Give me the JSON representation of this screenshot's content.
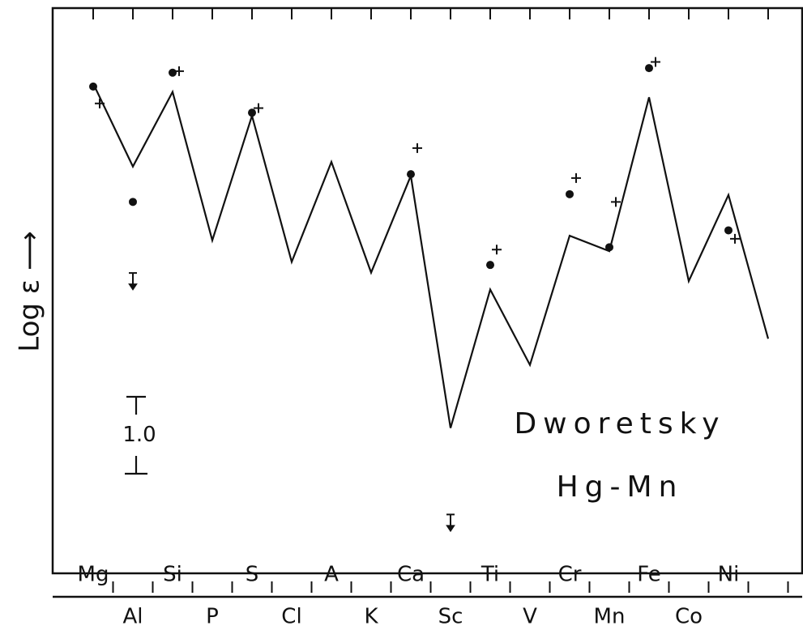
{
  "chart_data": {
    "type": "line",
    "y_label": "Log ε ⟶",
    "annotations": [
      "Dworetsky",
      "Hg-Mn"
    ],
    "scale_bar": {
      "value": 1.0,
      "label": "1.0"
    },
    "categories": [
      "Mg",
      "Al",
      "Si",
      "P",
      "S",
      "Cl",
      "A",
      "K",
      "Ca",
      "Sc",
      "Ti",
      "V",
      "Cr",
      "Mn",
      "Fe",
      "Co",
      "Ni",
      null
    ],
    "ylim": [
      0,
      7.35
    ],
    "series": [
      {
        "color": "#111111",
        "style": "line",
        "values": [
          6.37,
          5.29,
          6.26,
          4.33,
          5.95,
          4.05,
          5.35,
          3.91,
          5.17,
          1.89,
          3.69,
          2.71,
          4.39,
          4.19,
          6.19,
          3.8,
          4.92,
          3.05
        ]
      },
      {
        "color": "#111111",
        "style": "dot",
        "values": [
          6.33,
          4.83,
          6.51,
          null,
          5.99,
          null,
          null,
          null,
          5.19,
          null,
          4.01,
          null,
          4.93,
          4.24,
          6.57,
          null,
          4.46,
          null
        ]
      },
      {
        "color": "#111111",
        "style": "cross",
        "values": [
          6.11,
          null,
          6.53,
          null,
          6.05,
          null,
          null,
          null,
          5.53,
          null,
          4.21,
          null,
          5.14,
          4.83,
          6.65,
          null,
          4.35,
          null
        ]
      },
      {
        "color": "#111111",
        "style": "upper-limit",
        "values": [
          null,
          3.8,
          null,
          null,
          null,
          null,
          null,
          null,
          null,
          0.66,
          null,
          null,
          null,
          null,
          null,
          null,
          null,
          null
        ]
      }
    ]
  }
}
